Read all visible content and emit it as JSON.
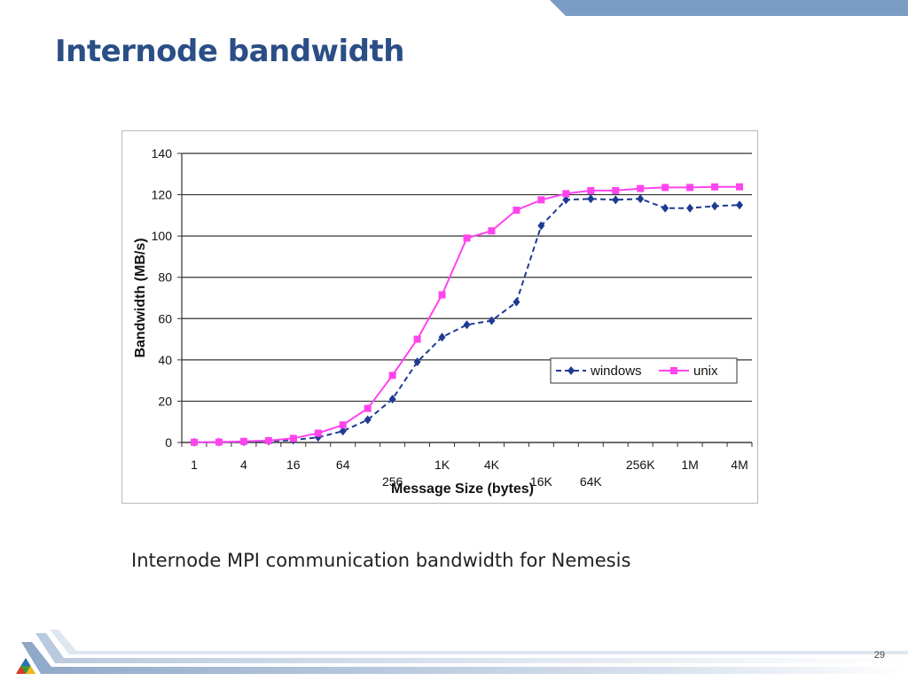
{
  "slide": {
    "title": "Internode bandwidth",
    "caption": "Internode MPI communication bandwidth for Nemesis",
    "page_number": "29"
  },
  "colors": {
    "title": "#2a4e85",
    "band": "#7b9cc4",
    "windows": "#1f3a93",
    "unix": "#ff44ee",
    "grid": "#333333"
  },
  "chart_data": {
    "type": "line",
    "title": "",
    "xlabel": "Message Size (bytes)",
    "ylabel": "Bandwidth (MB/s)",
    "ylim": [
      0,
      140
    ],
    "yticks": [
      0,
      20,
      40,
      60,
      80,
      100,
      120,
      140
    ],
    "x": [
      "1",
      "2",
      "4",
      "8",
      "16",
      "32",
      "64",
      "128",
      "256",
      "512",
      "1K",
      "2K",
      "4K",
      "8K",
      "16K",
      "32K",
      "64K",
      "128K",
      "256K",
      "512K",
      "1M",
      "2M",
      "4M"
    ],
    "xtick_labels": [
      {
        "label": "1",
        "index": 0,
        "row": 0
      },
      {
        "label": "4",
        "index": 2,
        "row": 0
      },
      {
        "label": "16",
        "index": 4,
        "row": 0
      },
      {
        "label": "64",
        "index": 6,
        "row": 0
      },
      {
        "label": "256",
        "index": 8,
        "row": 1
      },
      {
        "label": "1K",
        "index": 10,
        "row": 0
      },
      {
        "label": "4K",
        "index": 12,
        "row": 0
      },
      {
        "label": "16K",
        "index": 14,
        "row": 1
      },
      {
        "label": "64K",
        "index": 16,
        "row": 1
      },
      {
        "label": "256K",
        "index": 18,
        "row": 0
      },
      {
        "label": "1M",
        "index": 20,
        "row": 0
      },
      {
        "label": "4M",
        "index": 22,
        "row": 0
      }
    ],
    "grid": true,
    "legend_position": "lower-right",
    "series": [
      {
        "name": "windows",
        "style": "dashed",
        "marker": "diamond",
        "values": [
          0.1,
          0.2,
          0.4,
          0.7,
          1.2,
          2.5,
          5.5,
          11,
          21,
          39,
          51,
          57,
          59,
          68,
          105,
          117.5,
          118,
          117.5,
          118,
          113.5,
          113.5,
          114.5,
          115
        ]
      },
      {
        "name": "unix",
        "style": "solid",
        "marker": "square",
        "values": [
          0.1,
          0.2,
          0.5,
          0.9,
          2,
          4.5,
          8.5,
          16.5,
          32.5,
          50,
          71.5,
          99,
          102.5,
          112.5,
          117.5,
          120.5,
          122,
          122,
          123,
          123.5,
          123.5,
          123.8,
          123.8
        ]
      }
    ]
  }
}
